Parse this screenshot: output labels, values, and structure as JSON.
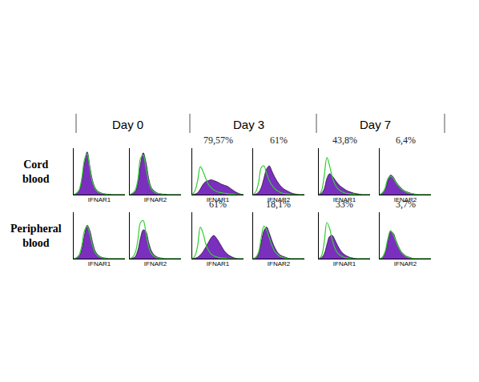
{
  "columns": [
    "Day 0",
    "Day 3",
    "Day 7"
  ],
  "rows": [
    "Cord blood",
    "Peripheral blood"
  ],
  "chart_data": [
    {
      "type": "area",
      "xlabel": "IFNAR1",
      "tick_labels": false,
      "x": [
        0,
        1,
        2,
        3,
        4,
        5,
        6,
        7,
        8,
        9,
        10,
        11,
        12,
        13,
        14,
        15,
        16,
        17,
        18,
        19
      ],
      "xlim": [
        0,
        19
      ],
      "ylim": [
        0,
        100
      ],
      "series": [
        {
          "type": "area",
          "color": "#7b2fbe",
          "values": [
            0,
            2,
            8,
            30,
            70,
            92,
            60,
            30,
            14,
            7,
            4,
            2,
            1,
            1,
            0,
            0,
            0,
            0,
            0,
            0
          ]
        },
        {
          "type": "line",
          "color": "#33cc33",
          "values": [
            0,
            3,
            10,
            35,
            75,
            88,
            55,
            26,
            12,
            6,
            3,
            2,
            1,
            0,
            0,
            0,
            0,
            0,
            0,
            0
          ]
        }
      ]
    },
    {
      "type": "area",
      "xlabel": "IFNAR2",
      "tick_labels": false,
      "x": [
        0,
        1,
        2,
        3,
        4,
        5,
        6,
        7,
        8,
        9,
        10,
        11,
        12,
        13,
        14,
        15,
        16,
        17,
        18,
        19
      ],
      "xlim": [
        0,
        19
      ],
      "ylim": [
        0,
        100
      ],
      "series": [
        {
          "type": "area",
          "color": "#7b2fbe",
          "values": [
            0,
            2,
            6,
            25,
            65,
            90,
            70,
            35,
            15,
            8,
            4,
            2,
            1,
            1,
            0,
            0,
            0,
            0,
            0,
            0
          ]
        },
        {
          "type": "line",
          "color": "#33cc33",
          "values": [
            0,
            3,
            9,
            32,
            78,
            85,
            58,
            28,
            12,
            6,
            3,
            2,
            1,
            0,
            0,
            0,
            0,
            0,
            0,
            0
          ]
        }
      ]
    },
    {
      "type": "area",
      "xlabel": "IFNAR1",
      "annotations": [
        "79,57%"
      ],
      "tick_labels": false,
      "x": [
        0,
        1,
        2,
        3,
        4,
        5,
        6,
        7,
        8,
        9,
        10,
        11,
        12,
        13,
        14,
        15,
        16,
        17,
        18,
        19
      ],
      "xlim": [
        0,
        19
      ],
      "ylim": [
        0,
        100
      ],
      "series": [
        {
          "type": "area",
          "color": "#7b2fbe",
          "values": [
            0,
            1,
            4,
            12,
            22,
            28,
            30,
            32,
            30,
            28,
            25,
            22,
            20,
            18,
            14,
            10,
            6,
            3,
            1,
            0
          ]
        },
        {
          "type": "line",
          "color": "#33cc33",
          "values": [
            0,
            8,
            30,
            60,
            50,
            35,
            22,
            15,
            10,
            7,
            5,
            4,
            3,
            2,
            1,
            1,
            0,
            0,
            0,
            0
          ]
        }
      ]
    },
    {
      "type": "area",
      "xlabel": "IFNAR2",
      "annotations": [
        "61%"
      ],
      "tick_labels": false,
      "x": [
        0,
        1,
        2,
        3,
        4,
        5,
        6,
        7,
        8,
        9,
        10,
        11,
        12,
        13,
        14,
        15,
        16,
        17,
        18,
        19
      ],
      "xlim": [
        0,
        19
      ],
      "ylim": [
        0,
        100
      ],
      "series": [
        {
          "type": "area",
          "color": "#7b2fbe",
          "values": [
            0,
            1,
            5,
            15,
            35,
            55,
            62,
            50,
            38,
            28,
            20,
            14,
            10,
            7,
            4,
            2,
            1,
            0,
            0,
            0
          ]
        },
        {
          "type": "line",
          "color": "#33cc33",
          "values": [
            0,
            6,
            25,
            58,
            62,
            45,
            30,
            20,
            13,
            8,
            5,
            3,
            2,
            1,
            0,
            0,
            0,
            0,
            0,
            0
          ]
        }
      ]
    },
    {
      "type": "area",
      "xlabel": "IFNAR1",
      "annotations": [
        "43,8%"
      ],
      "tick_labels": false,
      "x": [
        0,
        1,
        2,
        3,
        4,
        5,
        6,
        7,
        8,
        9,
        10,
        11,
        12,
        13,
        14,
        15,
        16,
        17,
        18,
        19
      ],
      "xlim": [
        0,
        19
      ],
      "ylim": [
        0,
        100
      ],
      "series": [
        {
          "type": "area",
          "color": "#7b2fbe",
          "values": [
            0,
            3,
            12,
            35,
            45,
            40,
            32,
            24,
            18,
            14,
            10,
            7,
            5,
            3,
            2,
            1,
            0,
            0,
            0,
            0
          ]
        },
        {
          "type": "line",
          "color": "#33cc33",
          "values": [
            0,
            8,
            40,
            80,
            62,
            38,
            22,
            13,
            8,
            5,
            3,
            2,
            1,
            1,
            0,
            0,
            0,
            0,
            0,
            0
          ]
        }
      ]
    },
    {
      "type": "area",
      "xlabel": "IFNAR2",
      "annotations": [
        "6,4%"
      ],
      "tick_labels": false,
      "x": [
        0,
        1,
        2,
        3,
        4,
        5,
        6,
        7,
        8,
        9,
        10,
        11,
        12,
        13,
        14,
        15,
        16,
        17,
        18,
        19
      ],
      "xlim": [
        0,
        19
      ],
      "ylim": [
        0,
        100
      ],
      "series": [
        {
          "type": "area",
          "color": "#7b2fbe",
          "values": [
            0,
            3,
            10,
            30,
            42,
            38,
            28,
            20,
            14,
            9,
            6,
            4,
            2,
            1,
            0,
            0,
            0,
            0,
            0,
            0
          ]
        },
        {
          "type": "line",
          "color": "#33cc33",
          "values": [
            0,
            4,
            14,
            34,
            40,
            36,
            26,
            18,
            12,
            8,
            5,
            3,
            2,
            1,
            0,
            0,
            0,
            0,
            0,
            0
          ]
        }
      ]
    },
    {
      "type": "area",
      "xlabel": "IFNAR1",
      "tick_labels": false,
      "x": [
        0,
        1,
        2,
        3,
        4,
        5,
        6,
        7,
        8,
        9,
        10,
        11,
        12,
        13,
        14,
        15,
        16,
        17,
        18,
        19
      ],
      "xlim": [
        0,
        19
      ],
      "ylim": [
        0,
        100
      ],
      "series": [
        {
          "type": "area",
          "color": "#7b2fbe",
          "values": [
            0,
            1,
            5,
            20,
            50,
            72,
            60,
            35,
            16,
            8,
            4,
            2,
            1,
            0,
            0,
            0,
            0,
            0,
            0,
            0
          ]
        },
        {
          "type": "line",
          "color": "#33cc33",
          "values": [
            0,
            2,
            8,
            28,
            60,
            70,
            52,
            28,
            12,
            6,
            3,
            1,
            0,
            0,
            0,
            0,
            0,
            0,
            0,
            0
          ]
        }
      ]
    },
    {
      "type": "area",
      "xlabel": "IFNAR2",
      "tick_labels": false,
      "x": [
        0,
        1,
        2,
        3,
        4,
        5,
        6,
        7,
        8,
        9,
        10,
        11,
        12,
        13,
        14,
        15,
        16,
        17,
        18,
        19
      ],
      "xlim": [
        0,
        19
      ],
      "ylim": [
        0,
        100
      ],
      "series": [
        {
          "type": "area",
          "color": "#7b2fbe",
          "values": [
            0,
            1,
            4,
            18,
            45,
            62,
            58,
            35,
            17,
            8,
            4,
            2,
            1,
            0,
            0,
            0,
            0,
            0,
            0,
            0
          ]
        },
        {
          "type": "line",
          "color": "#33cc33",
          "values": [
            0,
            3,
            12,
            40,
            78,
            82,
            55,
            26,
            11,
            5,
            2,
            1,
            0,
            0,
            0,
            0,
            0,
            0,
            0,
            0
          ]
        }
      ]
    },
    {
      "type": "area",
      "xlabel": "IFNAR1",
      "annotations": [
        "61%"
      ],
      "tick_labels": false,
      "x": [
        0,
        1,
        2,
        3,
        4,
        5,
        6,
        7,
        8,
        9,
        10,
        11,
        12,
        13,
        14,
        15,
        16,
        17,
        18,
        19
      ],
      "xlim": [
        0,
        19
      ],
      "ylim": [
        0,
        100
      ],
      "series": [
        {
          "type": "area",
          "color": "#7b2fbe",
          "values": [
            0,
            1,
            3,
            8,
            15,
            25,
            35,
            45,
            50,
            44,
            35,
            25,
            16,
            10,
            6,
            3,
            1,
            0,
            0,
            0
          ]
        },
        {
          "type": "line",
          "color": "#33cc33",
          "values": [
            0,
            6,
            28,
            68,
            55,
            32,
            18,
            10,
            6,
            4,
            2,
            1,
            1,
            0,
            0,
            0,
            0,
            0,
            0,
            0
          ]
        }
      ]
    },
    {
      "type": "area",
      "xlabel": "IFNAR2",
      "annotations": [
        "18,1%"
      ],
      "tick_labels": false,
      "x": [
        0,
        1,
        2,
        3,
        4,
        5,
        6,
        7,
        8,
        9,
        10,
        11,
        12,
        13,
        14,
        15,
        16,
        17,
        18,
        19
      ],
      "xlim": [
        0,
        19
      ],
      "ylim": [
        0,
        100
      ],
      "series": [
        {
          "type": "area",
          "color": "#7b2fbe",
          "values": [
            0,
            2,
            10,
            35,
            60,
            68,
            55,
            38,
            24,
            14,
            8,
            5,
            3,
            1,
            0,
            0,
            0,
            0,
            0,
            0
          ]
        },
        {
          "type": "line",
          "color": "#33cc33",
          "values": [
            0,
            3,
            14,
            45,
            70,
            62,
            45,
            28,
            16,
            9,
            5,
            3,
            1,
            0,
            0,
            0,
            0,
            0,
            0,
            0
          ]
        }
      ]
    },
    {
      "type": "area",
      "xlabel": "IFNAR1",
      "annotations": [
        "33%"
      ],
      "tick_labels": false,
      "x": [
        0,
        1,
        2,
        3,
        4,
        5,
        6,
        7,
        8,
        9,
        10,
        11,
        12,
        13,
        14,
        15,
        16,
        17,
        18,
        19
      ],
      "xlim": [
        0,
        19
      ],
      "ylim": [
        0,
        100
      ],
      "series": [
        {
          "type": "area",
          "color": "#7b2fbe",
          "values": [
            0,
            2,
            10,
            30,
            48,
            50,
            40,
            28,
            18,
            11,
            7,
            4,
            2,
            1,
            0,
            0,
            0,
            0,
            0,
            0
          ]
        },
        {
          "type": "line",
          "color": "#33cc33",
          "values": [
            0,
            6,
            35,
            78,
            65,
            40,
            22,
            12,
            7,
            4,
            2,
            1,
            0,
            0,
            0,
            0,
            0,
            0,
            0,
            0
          ]
        }
      ]
    },
    {
      "type": "area",
      "xlabel": "IFNAR2",
      "annotations": [
        "3,7%"
      ],
      "tick_labels": false,
      "x": [
        0,
        1,
        2,
        3,
        4,
        5,
        6,
        7,
        8,
        9,
        10,
        11,
        12,
        13,
        14,
        15,
        16,
        17,
        18,
        19
      ],
      "xlim": [
        0,
        19
      ],
      "ylim": [
        0,
        100
      ],
      "series": [
        {
          "type": "area",
          "color": "#7b2fbe",
          "values": [
            0,
            2,
            12,
            38,
            58,
            55,
            40,
            26,
            15,
            9,
            5,
            3,
            1,
            0,
            0,
            0,
            0,
            0,
            0,
            0
          ]
        },
        {
          "type": "line",
          "color": "#33cc33",
          "values": [
            0,
            3,
            15,
            42,
            60,
            52,
            38,
            24,
            14,
            8,
            4,
            2,
            1,
            0,
            0,
            0,
            0,
            0,
            0,
            0
          ]
        }
      ]
    }
  ]
}
